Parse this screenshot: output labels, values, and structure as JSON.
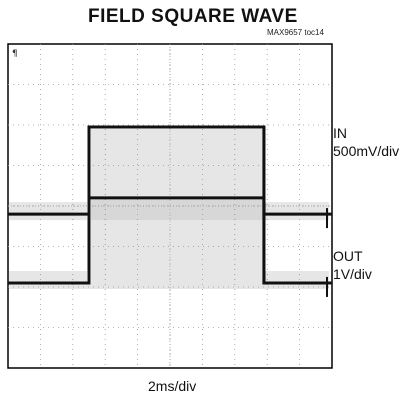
{
  "chart_data": {
    "type": "line",
    "title": "FIELD SQUARE WAVE",
    "note": "MAX9657 toc14",
    "xlabel": "2ms/div",
    "grid": true,
    "x_divisions": 10,
    "y_divisions": 8,
    "x": [
      0,
      2.5,
      2.5,
      7.9,
      7.9,
      10
    ],
    "series": [
      {
        "name": "IN",
        "scale": "500mV/div",
        "y_div": [
          -0.2,
          -0.2,
          1.95,
          1.95,
          -0.2,
          -0.2
        ]
      },
      {
        "name": "OUT",
        "scale": "1V/div",
        "y_div": [
          -1.9,
          -1.9,
          0.2,
          0.2,
          -1.9,
          -1.9
        ]
      }
    ]
  },
  "colors": {
    "trace": "#111111",
    "grid": "#9a9a9a",
    "frame": "#000000"
  }
}
